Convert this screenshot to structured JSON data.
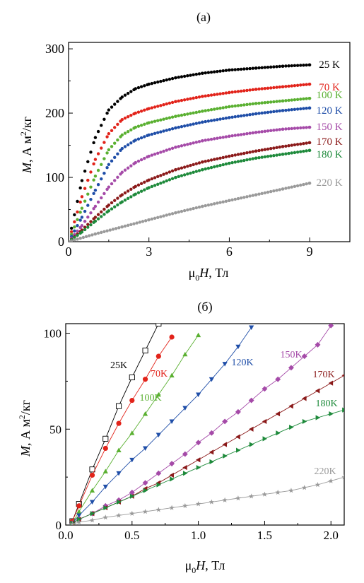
{
  "panels": [
    {
      "panel_label": "(a)",
      "ylabel_main": "M",
      "ylabel_rest": ", А м",
      "ylabel_sup": "2",
      "ylabel_tail": "/кг",
      "xlabel_main": "μ",
      "xlabel_sub": "0",
      "xlabel_italic": "H",
      "xlabel_tail": ", Тл"
    },
    {
      "panel_label": "(б)",
      "ylabel_main": "M",
      "ylabel_rest": ", А м",
      "ylabel_sup": "2",
      "ylabel_tail": "/кг",
      "xlabel_main": "μ",
      "xlabel_sub": "0",
      "xlabel_italic": "H",
      "xlabel_tail": ", Тл"
    }
  ],
  "chart_data": [
    {
      "type": "scatter",
      "xlim": [
        0,
        10.5
      ],
      "ylim": [
        0,
        310
      ],
      "xticks": [
        0,
        3,
        6,
        9
      ],
      "xtick_labels": [
        "0",
        "3",
        "6",
        "9"
      ],
      "yticks": [
        0,
        100,
        200,
        300
      ],
      "ytick_labels": [
        "0",
        "100",
        "200",
        "300"
      ],
      "grid": false,
      "legend": "none",
      "series": [
        {
          "name": "25 K",
          "label": "25 K",
          "color": "#000000",
          "marker": "circle",
          "x": [
            0,
            0.5,
            1,
            1.5,
            2,
            2.5,
            3,
            4,
            5,
            6,
            7,
            8,
            9
          ],
          "y": [
            0,
            95,
            162,
            205,
            225,
            238,
            245,
            255,
            262,
            267,
            270,
            273,
            275
          ]
        },
        {
          "name": "70 K",
          "label": "70 K",
          "color": "#e2231a",
          "marker": "circle",
          "x": [
            0,
            0.5,
            1,
            1.5,
            2,
            2.5,
            3,
            4,
            5,
            6,
            7,
            8,
            9
          ],
          "y": [
            0,
            70,
            128,
            168,
            190,
            200,
            207,
            218,
            226,
            232,
            237,
            241,
            245
          ]
        },
        {
          "name": "100 K",
          "label": "100 K",
          "color": "#5ab031",
          "marker": "circle",
          "x": [
            0,
            0.5,
            1,
            1.5,
            2,
            2.5,
            3,
            4,
            5,
            6,
            7,
            8,
            9
          ],
          "y": [
            0,
            52,
            102,
            143,
            166,
            178,
            185,
            195,
            203,
            210,
            215,
            219,
            223
          ]
        },
        {
          "name": "120 K",
          "label": "120 K",
          "color": "#1f4ea8",
          "marker": "circle",
          "x": [
            0,
            0.5,
            1,
            1.5,
            2,
            2.5,
            3,
            4,
            5,
            6,
            7,
            8,
            9
          ],
          "y": [
            0,
            38,
            80,
            120,
            145,
            158,
            166,
            177,
            186,
            193,
            199,
            204,
            208
          ]
        },
        {
          "name": "150 K",
          "label": "150 K",
          "color": "#a54aa8",
          "marker": "circle",
          "x": [
            0,
            0.5,
            1,
            1.5,
            2,
            2.5,
            3,
            4,
            5,
            6,
            7,
            8,
            9
          ],
          "y": [
            0,
            25,
            55,
            85,
            108,
            123,
            133,
            147,
            157,
            164,
            170,
            175,
            178
          ]
        },
        {
          "name": "170 K",
          "label": "170 K",
          "color": "#8b1a1a",
          "marker": "circle",
          "x": [
            0,
            0.5,
            1,
            1.5,
            2,
            2.5,
            3,
            4,
            5,
            6,
            7,
            8,
            9
          ],
          "y": [
            0,
            18,
            38,
            57,
            73,
            86,
            96,
            112,
            124,
            133,
            141,
            148,
            154
          ]
        },
        {
          "name": "180 K",
          "label": "180 K",
          "color": "#1e8a3b",
          "marker": "circle",
          "x": [
            0,
            0.5,
            1,
            1.5,
            2,
            2.5,
            3,
            4,
            5,
            6,
            7,
            8,
            9
          ],
          "y": [
            0,
            15,
            32,
            48,
            62,
            74,
            84,
            100,
            112,
            122,
            130,
            136,
            142
          ]
        },
        {
          "name": "220 K",
          "label": "220 K",
          "color": "#9a9a9a",
          "marker": "circle",
          "x": [
            0,
            1,
            2,
            3,
            4,
            5,
            6,
            7,
            8,
            9
          ],
          "y": [
            0,
            12,
            23,
            34,
            45,
            55,
            64,
            73,
            82,
            91
          ]
        }
      ]
    },
    {
      "type": "scatter",
      "xlim": [
        0,
        2.1
      ],
      "ylim": [
        0,
        105
      ],
      "xticks": [
        0,
        0.5,
        1.0,
        1.5,
        2.0
      ],
      "xtick_labels": [
        "0.0",
        "0.5",
        "1.0",
        "1.5",
        "2.0"
      ],
      "yticks": [
        0,
        50,
        100
      ],
      "ytick_labels": [
        "0",
        "50",
        "100"
      ],
      "grid": false,
      "legend": "none",
      "series": [
        {
          "name": "25K",
          "label": "25K",
          "color": "#000000",
          "marker": "square-open",
          "x": [
            0.05,
            0.1,
            0.2,
            0.3,
            0.4,
            0.5,
            0.6,
            0.7
          ],
          "y": [
            2,
            11,
            29,
            45,
            62,
            77,
            91,
            105
          ]
        },
        {
          "name": "70K",
          "label": "70K",
          "color": "#e2231a",
          "marker": "circle",
          "x": [
            0.05,
            0.1,
            0.2,
            0.3,
            0.4,
            0.5,
            0.6,
            0.7,
            0.8
          ],
          "y": [
            2,
            10,
            26,
            40,
            53,
            65,
            76,
            88,
            98
          ]
        },
        {
          "name": "100K",
          "label": "100K",
          "color": "#5ab031",
          "marker": "triangle-up",
          "x": [
            0.05,
            0.1,
            0.2,
            0.3,
            0.4,
            0.5,
            0.6,
            0.7,
            0.8,
            0.9,
            1.0
          ],
          "y": [
            1,
            7,
            18,
            28,
            39,
            48,
            58,
            68,
            78,
            89,
            99
          ]
        },
        {
          "name": "120K",
          "label": "120K",
          "color": "#1f4ea8",
          "marker": "triangle-down",
          "x": [
            0.05,
            0.1,
            0.2,
            0.3,
            0.4,
            0.5,
            0.6,
            0.7,
            0.8,
            0.9,
            1.0,
            1.1,
            1.2,
            1.3,
            1.4
          ],
          "y": [
            1,
            5,
            12,
            20,
            27,
            34,
            40,
            47,
            54,
            61,
            68,
            76,
            84,
            93,
            103
          ]
        },
        {
          "name": "150K",
          "label": "150K",
          "color": "#a54aa8",
          "marker": "diamond",
          "x": [
            0.05,
            0.1,
            0.2,
            0.3,
            0.4,
            0.5,
            0.6,
            0.7,
            0.8,
            0.9,
            1.0,
            1.1,
            1.2,
            1.3,
            1.4,
            1.5,
            1.6,
            1.7,
            1.8,
            1.9,
            2.0
          ],
          "y": [
            1,
            3,
            6,
            10,
            13,
            17,
            22,
            27,
            32,
            37,
            43,
            48,
            54,
            59,
            65,
            71,
            76,
            82,
            88,
            94,
            104
          ]
        },
        {
          "name": "170K",
          "label": "170K",
          "color": "#8b1a1a",
          "marker": "triangle-left",
          "x": [
            0.05,
            0.1,
            0.2,
            0.3,
            0.4,
            0.5,
            0.6,
            0.7,
            0.8,
            0.9,
            1.0,
            1.1,
            1.2,
            1.3,
            1.4,
            1.5,
            1.6,
            1.7,
            1.8,
            1.9,
            2.0,
            2.1
          ],
          "y": [
            1,
            3,
            6,
            9,
            12,
            15,
            19,
            22,
            26,
            30,
            34,
            38,
            42,
            46,
            50,
            54,
            58,
            62,
            66,
            70,
            74,
            78
          ]
        },
        {
          "name": "180K",
          "label": "180K",
          "color": "#1e8a3b",
          "marker": "triangle-right",
          "x": [
            0.05,
            0.1,
            0.2,
            0.3,
            0.4,
            0.5,
            0.6,
            0.7,
            0.8,
            0.9,
            1.0,
            1.1,
            1.2,
            1.3,
            1.4,
            1.5,
            1.6,
            1.7,
            1.8,
            1.9,
            2.0,
            2.1
          ],
          "y": [
            1,
            3,
            6,
            9,
            12,
            15,
            18,
            21,
            24,
            27,
            30,
            33,
            36,
            39,
            42,
            45,
            48,
            51,
            54,
            56,
            58,
            60
          ]
        },
        {
          "name": "220K",
          "label": "220K",
          "color": "#9a9a9a",
          "marker": "star",
          "x": [
            0.05,
            0.1,
            0.2,
            0.3,
            0.4,
            0.5,
            0.6,
            0.7,
            0.8,
            0.9,
            1.0,
            1.1,
            1.2,
            1.3,
            1.4,
            1.5,
            1.6,
            1.7,
            1.8,
            1.9,
            2.0,
            2.1
          ],
          "y": [
            0.5,
            1.5,
            2.5,
            4,
            5,
            6,
            7,
            8,
            9,
            10,
            11,
            12,
            13,
            14,
            15,
            16,
            17,
            18,
            19.5,
            21,
            23,
            25
          ]
        }
      ]
    }
  ]
}
